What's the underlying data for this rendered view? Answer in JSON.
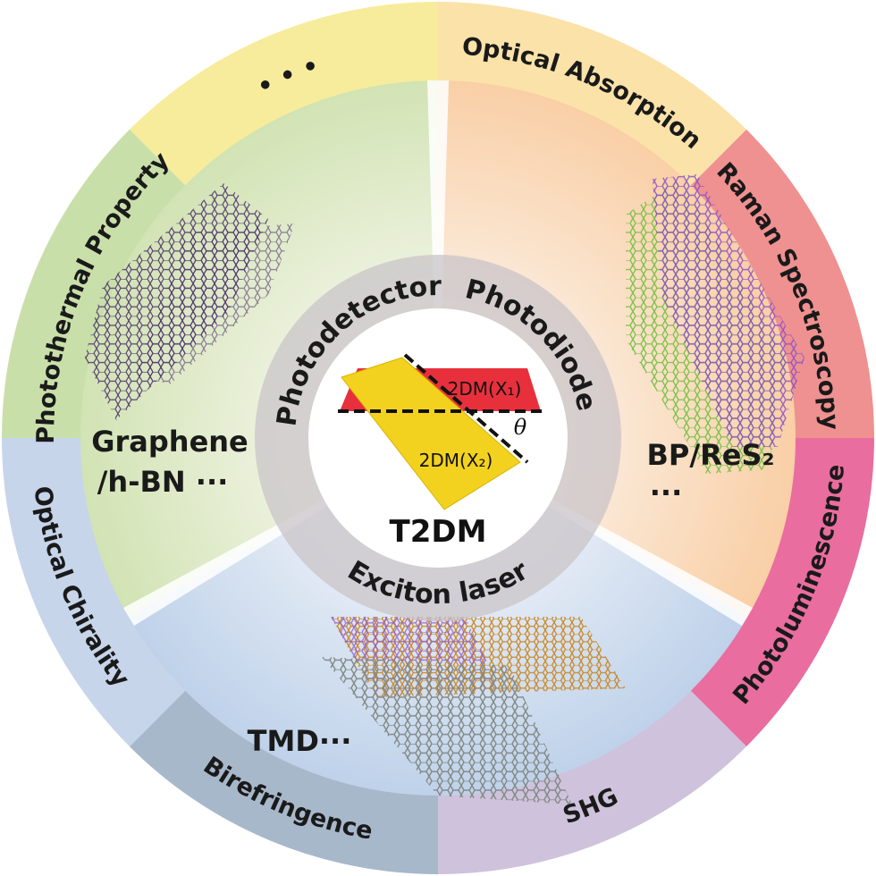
{
  "outer_ring": [
    {
      "label": "• • •",
      "color": "#f7ec9c"
    },
    {
      "label": "Optical Absorption",
      "color": "#fbe2a9"
    },
    {
      "label": "Raman Spectroscopy",
      "color": "#ef9190"
    },
    {
      "label": "Photoluminescence",
      "color": "#ea6d9f"
    },
    {
      "label": "SHG",
      "color": "#cfc2dc"
    },
    {
      "label": "Birefringence",
      "color": "#a8b8cb"
    },
    {
      "label": "Optical Chirality",
      "color": "#c6d5ea"
    },
    {
      "label": "Photothermal Property",
      "color": "#c9dfa9"
    }
  ],
  "applications": {
    "photodetector": "Photodetector",
    "photodiode": "Photodiode",
    "exciton_laser": "Exciton laser"
  },
  "materials": {
    "graphene_line1": "Graphene",
    "graphene_line2": "/h-BN ···",
    "bp_line1": "BP/ReS₂",
    "bp_line2": "···",
    "tmd": "TMD···"
  },
  "center": {
    "layer1": "2DM(X₁)",
    "layer2": "2DM(X₂)",
    "angle": "θ",
    "title": "T2DM"
  }
}
